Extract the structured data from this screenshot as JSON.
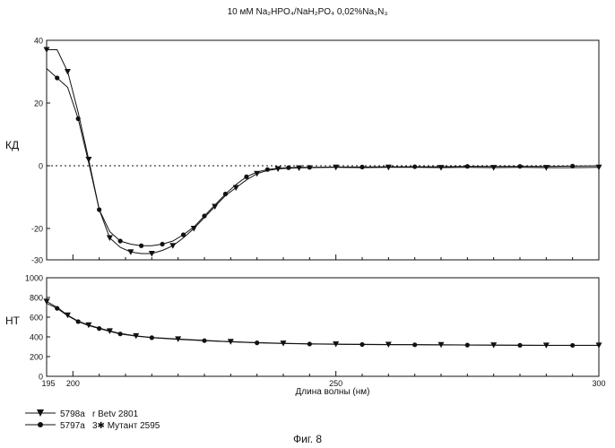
{
  "header": {
    "buffer_text": "10 мМ  Na₂HPO₄/NaH₂PO₄  0,02%Na₃N₃"
  },
  "figure_caption": "Фиг. 8",
  "chart_data": [
    {
      "type": "line",
      "ylabel": "КД",
      "xlim": [
        195,
        300
      ],
      "ylim": [
        -30,
        40
      ],
      "yticks": [
        40,
        20,
        0,
        -20,
        -30
      ],
      "zero_line": "dotted",
      "series": [
        {
          "name": "5798a  r Betv 2801",
          "marker": "triangle-down",
          "x": [
            195,
            197,
            199,
            201,
            203,
            205,
            207,
            209,
            211,
            213,
            215,
            217,
            219,
            221,
            223,
            225,
            227,
            229,
            231,
            233,
            235,
            237,
            239,
            241,
            243,
            245,
            250,
            255,
            260,
            265,
            270,
            275,
            280,
            285,
            290,
            295,
            300
          ],
          "y": [
            37,
            37,
            30,
            17,
            2,
            -14,
            -23,
            -26,
            -27.5,
            -28,
            -28,
            -27,
            -25.5,
            -23,
            -20,
            -16.5,
            -13,
            -9.5,
            -7,
            -4.5,
            -2.5,
            -1.5,
            -1,
            -0.8,
            -0.7,
            -0.6,
            -0.5,
            -0.6,
            -0.5,
            -0.5,
            -0.6,
            -0.5,
            -0.6,
            -0.5,
            -0.6,
            -0.6,
            -0.5
          ]
        },
        {
          "name": "5797a  3✱ Мутант 2595",
          "marker": "circle",
          "x": [
            195,
            197,
            199,
            201,
            203,
            205,
            207,
            209,
            211,
            213,
            215,
            217,
            219,
            221,
            223,
            225,
            227,
            229,
            231,
            233,
            235,
            237,
            239,
            241,
            243,
            245,
            250,
            255,
            260,
            265,
            270,
            275,
            280,
            285,
            290,
            295,
            300
          ],
          "y": [
            31,
            28,
            25,
            15,
            1,
            -14,
            -21,
            -24,
            -25,
            -25.5,
            -25.5,
            -25,
            -24,
            -22,
            -19.5,
            -16,
            -12.5,
            -9,
            -6,
            -3.5,
            -2,
            -1.2,
            -0.8,
            -0.6,
            -0.5,
            -0.5,
            -0.4,
            -0.4,
            -0.3,
            -0.3,
            -0.3,
            -0.2,
            -0.2,
            -0.2,
            -0.2,
            -0.1,
            0
          ]
        }
      ]
    },
    {
      "type": "line",
      "ylabel": "НТ",
      "xlabel": "Длина волны (нм)",
      "xlim": [
        195,
        300
      ],
      "ylim": [
        0,
        1000
      ],
      "yticks": [
        1000,
        800,
        600,
        400,
        200,
        0
      ],
      "xticks": [
        195,
        200,
        250,
        300
      ],
      "series": [
        {
          "name": "5798a  r Betv 2801",
          "marker": "triangle-down",
          "x": [
            195,
            197,
            199,
            201,
            203,
            205,
            207,
            209,
            212,
            215,
            220,
            225,
            230,
            235,
            240,
            245,
            250,
            255,
            260,
            265,
            270,
            275,
            280,
            285,
            290,
            295,
            300
          ],
          "y": [
            760,
            700,
            620,
            560,
            520,
            490,
            460,
            435,
            410,
            395,
            378,
            365,
            352,
            342,
            335,
            330,
            327,
            325,
            323,
            322,
            320,
            318,
            317,
            316,
            315,
            315,
            315
          ]
        },
        {
          "name": "5797a  3✱ Мутант 2595",
          "marker": "circle",
          "x": [
            195,
            197,
            199,
            201,
            203,
            205,
            207,
            209,
            212,
            215,
            220,
            225,
            230,
            235,
            240,
            245,
            250,
            255,
            260,
            265,
            270,
            275,
            280,
            285,
            290,
            295,
            300
          ],
          "y": [
            740,
            690,
            615,
            555,
            515,
            485,
            455,
            430,
            408,
            392,
            375,
            362,
            350,
            340,
            333,
            328,
            325,
            323,
            321,
            320,
            318,
            317,
            316,
            315,
            314,
            314,
            314
          ]
        }
      ]
    }
  ],
  "legend": [
    {
      "code": "5798a",
      "label": "r Betv 2801",
      "marker": "triangle-down"
    },
    {
      "code": "5797a",
      "label": "3✱ Мутант 2595",
      "marker": "circle"
    }
  ],
  "colors": {
    "line": "#111111",
    "background": "#ffffff"
  }
}
